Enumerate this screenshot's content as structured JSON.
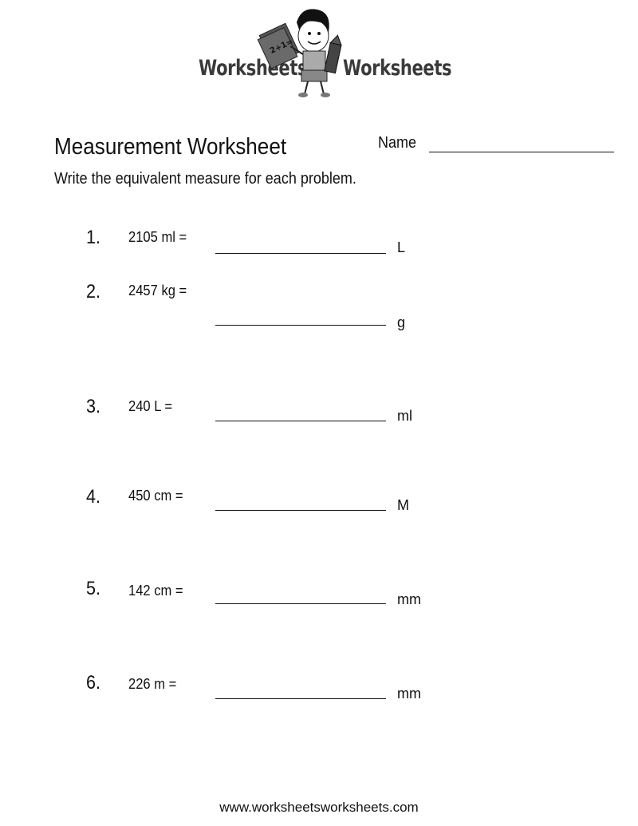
{
  "logo": {
    "left_word": "Worksheets",
    "right_word": "Worksheets",
    "book_text": "2+1="
  },
  "header": {
    "title": "Measurement Worksheet",
    "name_label": "Name"
  },
  "instructions": "Write the equivalent measure for each problem.",
  "problems": [
    {
      "number": "1.",
      "expression": "2105 ml =",
      "unit": "L",
      "answer": ""
    },
    {
      "number": "2.",
      "expression": "2457 kg =",
      "unit": "g",
      "answer": ""
    },
    {
      "number": "3.",
      "expression": "240 L =",
      "unit": "ml",
      "answer": ""
    },
    {
      "number": "4.",
      "expression": "450 cm =",
      "unit": "M",
      "answer": ""
    },
    {
      "number": "5.",
      "expression": "142 cm =",
      "unit": "mm",
      "answer": ""
    },
    {
      "number": "6.",
      "expression": "226 m =",
      "unit": "mm",
      "answer": ""
    }
  ],
  "footer": "www.worksheetsworksheets.com"
}
